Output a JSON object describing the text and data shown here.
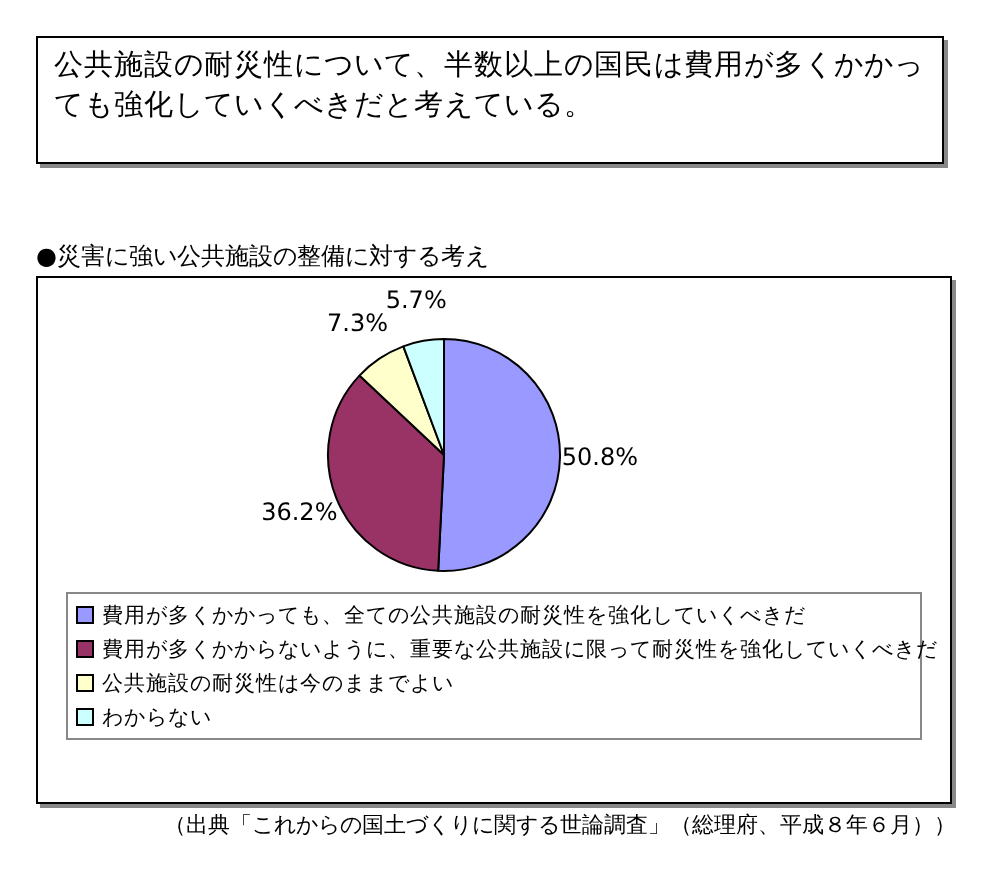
{
  "chart_data": {
    "type": "pie",
    "title": "公共施設の耐災性について、半数以上の国民は費用が多くかかっても強化していくべきだと考えている。",
    "subtitle": "●災害に強い公共施設の整備に対する考え",
    "categories": [
      "費用が多くかかっても、全ての公共施設の耐災性を強化していくべきだ",
      "費用が多くかからないように、重要な公共施設に限って耐災性を強化していくべきだ",
      "公共施設の耐災性は今のままでよい",
      "わからない"
    ],
    "values": [
      50.8,
      36.2,
      7.3,
      5.7
    ],
    "value_labels": [
      "50.8%",
      "36.2%",
      "7.3%",
      "5.7%"
    ],
    "colors": [
      "#9999ff",
      "#993366",
      "#ffffcc",
      "#ccffff"
    ],
    "legend": "bottom",
    "annotations": [
      "（出典「これからの国土づくりに関する世論調査」（総理府、平成８年６月））"
    ]
  }
}
